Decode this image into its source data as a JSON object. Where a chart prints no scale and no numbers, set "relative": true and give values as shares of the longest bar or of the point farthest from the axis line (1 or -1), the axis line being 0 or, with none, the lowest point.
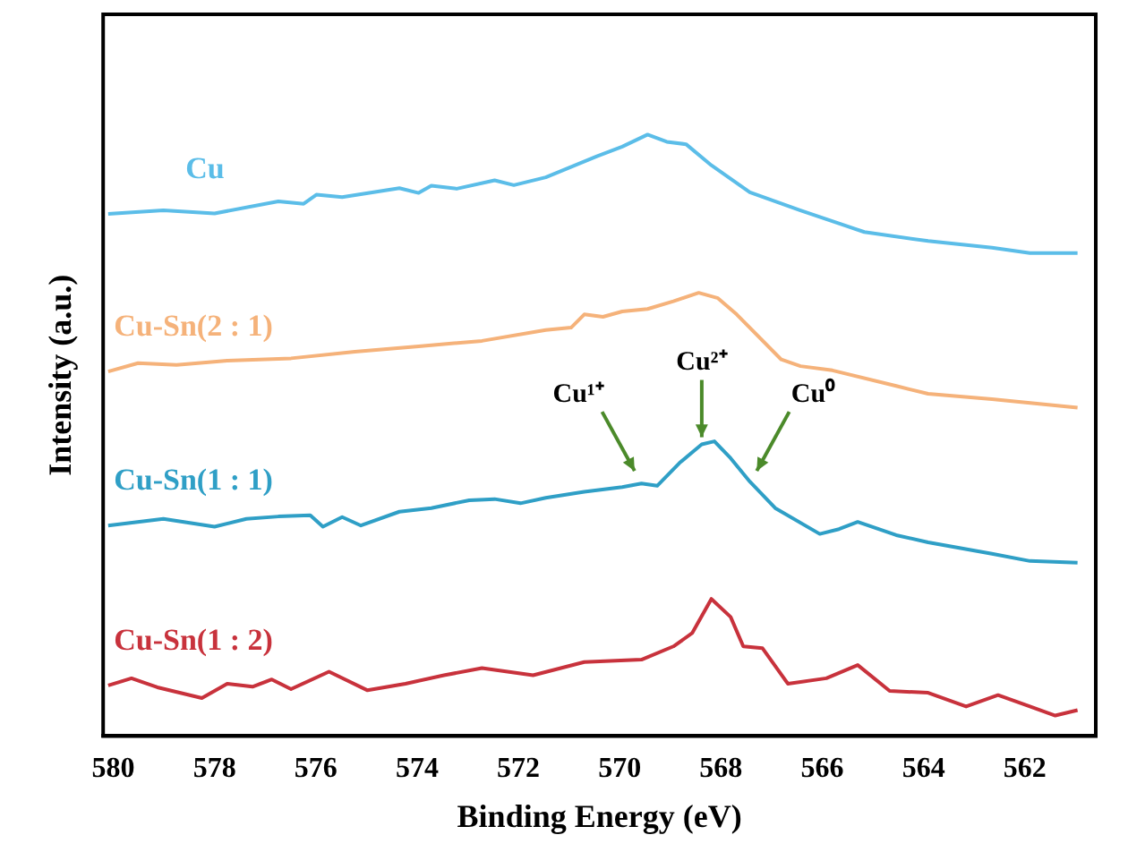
{
  "chart_data": {
    "type": "line",
    "relative": true,
    "xlabel": "Binding Energy (eV)",
    "ylabel": "Intensity (a.u.)",
    "xlim": [
      580.2,
      560.6
    ],
    "xticks": [
      580,
      578,
      576,
      574,
      572,
      570,
      568,
      566,
      564,
      562
    ],
    "grid": false,
    "legend": false,
    "marker": "none",
    "line_style": "solid",
    "series": [
      {
        "name": "Cu",
        "color": "#5bbde8",
        "x": [
          580.1,
          579.01,
          578.0,
          576.74,
          576.24,
          575.99,
          575.48,
          574.35,
          573.97,
          573.72,
          573.22,
          572.47,
          572.09,
          571.46,
          570.45,
          569.95,
          569.45,
          569.07,
          568.69,
          568.19,
          567.43,
          566.43,
          565.17,
          563.91,
          562.65,
          561.9,
          560.96
        ],
        "values": [
          0.868,
          0.874,
          0.869,
          0.889,
          0.885,
          0.9,
          0.896,
          0.911,
          0.903,
          0.915,
          0.91,
          0.924,
          0.916,
          0.929,
          0.964,
          0.98,
          1.0,
          0.988,
          0.984,
          0.949,
          0.904,
          0.874,
          0.838,
          0.823,
          0.812,
          0.803,
          0.803
        ]
      },
      {
        "name": "Cu-Sn(2 : 1)",
        "color": "#f5b27a",
        "x": [
          580.1,
          579.51,
          578.75,
          577.75,
          576.49,
          575.23,
          573.97,
          572.72,
          571.46,
          570.96,
          570.7,
          570.33,
          569.95,
          569.45,
          568.94,
          568.44,
          568.06,
          567.69,
          566.81,
          566.43,
          565.8,
          564.54,
          563.91,
          562.65,
          560.96
        ],
        "values": [
          0.606,
          0.62,
          0.617,
          0.624,
          0.628,
          0.639,
          0.648,
          0.657,
          0.675,
          0.679,
          0.701,
          0.697,
          0.706,
          0.71,
          0.723,
          0.737,
          0.728,
          0.701,
          0.626,
          0.615,
          0.608,
          0.582,
          0.569,
          0.56,
          0.546
        ]
      },
      {
        "name": "Cu-Sn(1 : 1)",
        "color": "#2f9fc6",
        "x": [
          580.1,
          579.01,
          578.0,
          577.37,
          576.74,
          576.11,
          575.86,
          575.48,
          575.11,
          574.35,
          573.72,
          572.97,
          572.47,
          571.96,
          571.46,
          570.7,
          569.95,
          569.57,
          569.26,
          568.82,
          568.38,
          568.13,
          567.81,
          567.43,
          566.93,
          566.05,
          565.67,
          565.3,
          564.54,
          563.91,
          562.65,
          561.9,
          560.96
        ],
        "values": [
          0.35,
          0.361,
          0.348,
          0.361,
          0.365,
          0.367,
          0.348,
          0.364,
          0.35,
          0.373,
          0.379,
          0.392,
          0.394,
          0.387,
          0.396,
          0.406,
          0.414,
          0.42,
          0.416,
          0.454,
          0.485,
          0.49,
          0.462,
          0.423,
          0.379,
          0.336,
          0.344,
          0.356,
          0.334,
          0.322,
          0.303,
          0.291,
          0.288
        ]
      },
      {
        "name": "Cu-Sn(1 : 2)",
        "color": "#c8323c",
        "x": [
          580.1,
          579.64,
          579.13,
          578.25,
          577.75,
          577.25,
          576.87,
          576.49,
          575.74,
          574.98,
          574.23,
          573.47,
          572.72,
          571.71,
          570.7,
          569.57,
          568.94,
          568.57,
          568.19,
          567.81,
          567.56,
          567.18,
          566.68,
          565.92,
          565.3,
          564.67,
          563.91,
          563.16,
          562.53,
          561.9,
          561.4,
          560.96
        ],
        "values": [
          0.084,
          0.096,
          0.081,
          0.063,
          0.087,
          0.082,
          0.094,
          0.078,
          0.107,
          0.076,
          0.087,
          0.101,
          0.113,
          0.101,
          0.123,
          0.127,
          0.149,
          0.171,
          0.228,
          0.198,
          0.149,
          0.146,
          0.087,
          0.096,
          0.118,
          0.075,
          0.072,
          0.049,
          0.068,
          0.049,
          0.034,
          0.043
        ]
      }
    ],
    "annotations": [
      {
        "text": "Cu¹⁺",
        "x": 569.57,
        "y": 0.42
      },
      {
        "text": "Cu²⁺",
        "x": 568.38,
        "y": 0.473
      },
      {
        "text": "Cu⁰",
        "x": 567.43,
        "y": 0.42
      }
    ]
  }
}
